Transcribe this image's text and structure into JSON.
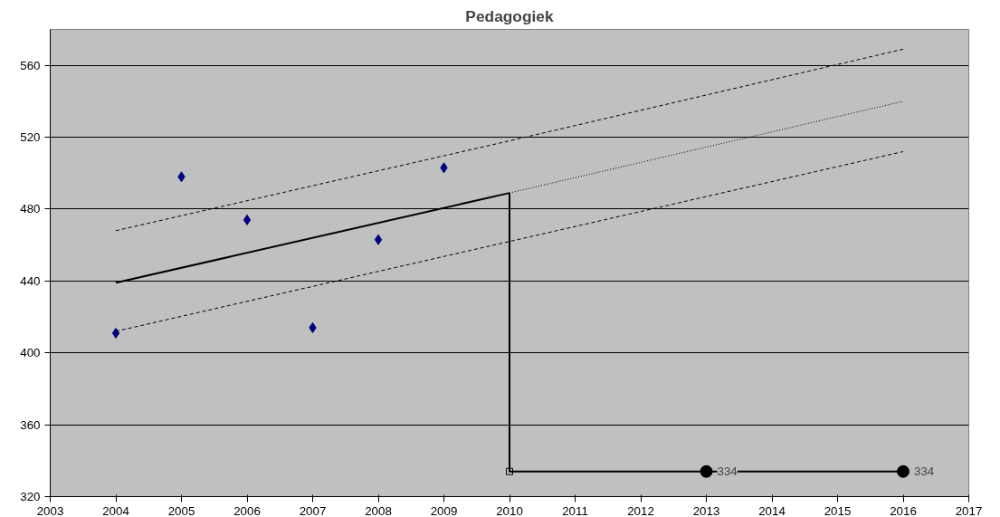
{
  "chart_data": {
    "type": "line",
    "title": "Pedagogiek",
    "xlim": [
      2003,
      2017
    ],
    "xticks": [
      2003,
      2004,
      2005,
      2006,
      2007,
      2008,
      2009,
      2010,
      2011,
      2012,
      2013,
      2014,
      2015,
      2016,
      2017
    ],
    "ylim": [
      320,
      580
    ],
    "yticks": [
      320,
      360,
      400,
      440,
      480,
      520,
      560
    ],
    "grid": "y",
    "series": [
      {
        "type": "scatter",
        "marker": "diamond",
        "color": "#000080",
        "x": [
          2004,
          2005,
          2006,
          2007,
          2008,
          2009
        ],
        "values": [
          411,
          498,
          474,
          414,
          463,
          503
        ]
      },
      {
        "marker": "none",
        "line_style": "solid",
        "color": "#000000",
        "x": [
          2004,
          2010
        ],
        "values": [
          439,
          489
        ]
      },
      {
        "marker": "none",
        "line_style": "dotted",
        "color": "#000000",
        "x": [
          2010,
          2016
        ],
        "values": [
          489,
          540
        ]
      },
      {
        "marker": "none",
        "line_style": "dashed",
        "color": "#000000",
        "x": [
          2004,
          2010,
          2016
        ],
        "values": [
          468,
          518,
          569
        ]
      },
      {
        "marker": "none",
        "line_style": "dashed",
        "color": "#000000",
        "x": [
          2004,
          2010,
          2016
        ],
        "values": [
          412,
          462,
          512
        ]
      },
      {
        "marker": "none",
        "line_style": "solid",
        "color": "#000000",
        "x": [
          2010,
          2010,
          2016
        ],
        "values": [
          489,
          334,
          334
        ]
      },
      {
        "type": "scatter",
        "marker": "square",
        "color": "#000000",
        "x": [
          2010
        ],
        "values": [
          334
        ]
      },
      {
        "type": "scatter",
        "marker": "circle",
        "color": "#000000",
        "x": [
          2013,
          2016
        ],
        "values": [
          334,
          334
        ],
        "value_labels": [
          "334",
          "334"
        ]
      }
    ]
  }
}
